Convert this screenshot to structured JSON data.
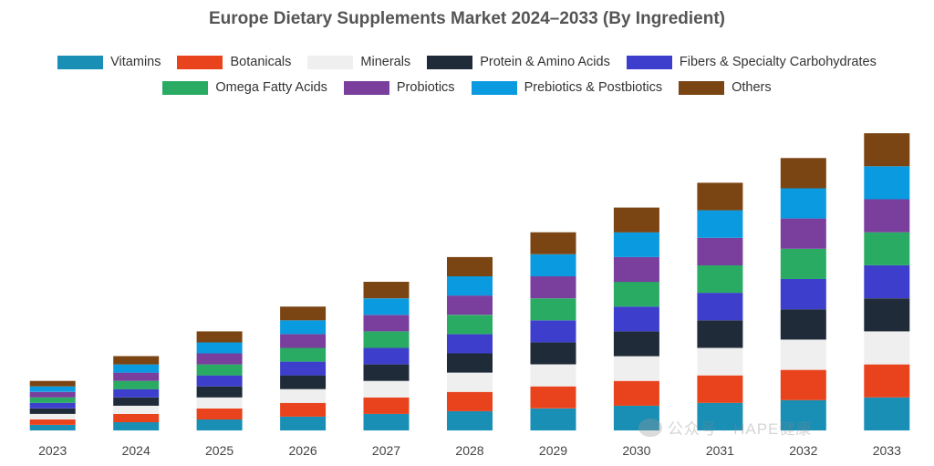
{
  "colors": {
    "Vitamins": "#1a8fb5",
    "Botanicals": "#e8431c",
    "Minerals": "#efefef",
    "Protein & Amino Acids": "#1f2b38",
    "Fibers & Specialty Carbohydrates": "#3d3fcc",
    "Omega Fatty Acids": "#29ab64",
    "Probiotics": "#7a3e9d",
    "Prebiotics & Postbiotics": "#0a9ae0",
    "Others": "#7b4513"
  },
  "watermark": "公众号 · HAPE健康",
  "chart_data": {
    "type": "bar",
    "stacked": true,
    "title": "Europe Dietary Supplements Market 2024–2033 (By Ingredient)",
    "xlabel": "",
    "ylabel": "",
    "ylim": [
      0,
      340
    ],
    "grid": false,
    "legend_position": "top",
    "categories": [
      "2023",
      "2024",
      "2025",
      "2026",
      "2027",
      "2028",
      "2029",
      "2030",
      "2031",
      "2032",
      "2033"
    ],
    "series": [
      {
        "name": "Vitamins",
        "values": [
          6,
          9,
          12,
          15,
          18,
          21,
          24,
          27,
          30,
          33,
          36
        ]
      },
      {
        "name": "Botanicals",
        "values": [
          6,
          9,
          12,
          15,
          18,
          21,
          24,
          27,
          30,
          33,
          36
        ]
      },
      {
        "name": "Minerals",
        "values": [
          6,
          9,
          12,
          15,
          18,
          21,
          24,
          27,
          30,
          33,
          36
        ]
      },
      {
        "name": "Protein & Amino Acids",
        "values": [
          6,
          9,
          12,
          15,
          18,
          21,
          24,
          27,
          30,
          33,
          36
        ]
      },
      {
        "name": "Fibers & Specialty Carbohydrates",
        "values": [
          6,
          9,
          12,
          15,
          18,
          21,
          24,
          27,
          30,
          33,
          36
        ]
      },
      {
        "name": "Omega Fatty Acids",
        "values": [
          6,
          9,
          12,
          15,
          18,
          21,
          24,
          27,
          30,
          33,
          36
        ]
      },
      {
        "name": "Probiotics",
        "values": [
          6,
          9,
          12,
          15,
          18,
          21,
          24,
          27,
          30,
          33,
          36
        ]
      },
      {
        "name": "Prebiotics & Postbiotics",
        "values": [
          6,
          9,
          12,
          15,
          18,
          21,
          24,
          27,
          30,
          33,
          36
        ]
      },
      {
        "name": "Others",
        "values": [
          6,
          9,
          12,
          15,
          18,
          21,
          24,
          27,
          30,
          33,
          36
        ]
      }
    ]
  }
}
